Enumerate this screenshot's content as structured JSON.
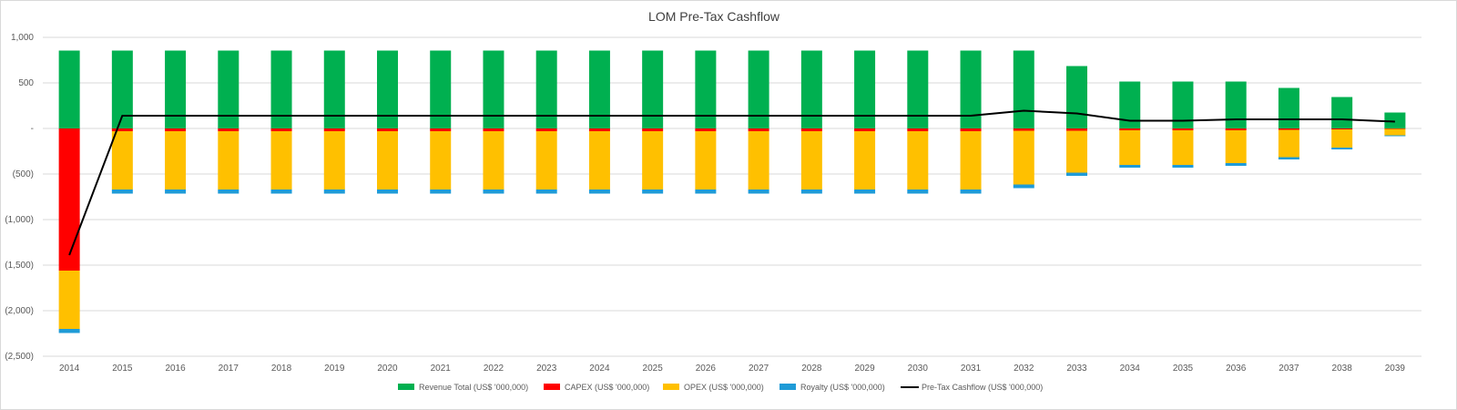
{
  "chart_data": {
    "type": "bar",
    "stacked": true,
    "title": "LOM Pre-Tax Cashflow",
    "xlabel": "",
    "ylabel": "",
    "ylim": [
      -2500,
      1000
    ],
    "y_ticks": [
      {
        "value": 1000,
        "label": "1,000"
      },
      {
        "value": 500,
        "label": "500"
      },
      {
        "value": 0,
        "label": "-"
      },
      {
        "value": -500,
        "label": "(500)"
      },
      {
        "value": -1000,
        "label": "(1,000)"
      },
      {
        "value": -1500,
        "label": "(1,500)"
      },
      {
        "value": -2000,
        "label": "(2,000)"
      },
      {
        "value": -2500,
        "label": "(2,500)"
      }
    ],
    "grid": true,
    "legend_position": "bottom",
    "categories": [
      "2014",
      "2015",
      "2016",
      "2017",
      "2018",
      "2019",
      "2020",
      "2021",
      "2022",
      "2023",
      "2024",
      "2025",
      "2026",
      "2027",
      "2028",
      "2029",
      "2030",
      "2031",
      "2032",
      "2033",
      "2034",
      "2035",
      "2036",
      "2037",
      "2038",
      "2039"
    ],
    "series": [
      {
        "name": "Revenue Total (US$ '000,000)",
        "kind": "bar",
        "color": "#00b050",
        "values": [
          855,
          855,
          855,
          855,
          855,
          855,
          855,
          855,
          855,
          855,
          855,
          855,
          855,
          855,
          855,
          855,
          855,
          855,
          855,
          685,
          515,
          515,
          515,
          445,
          345,
          175
        ]
      },
      {
        "name": "CAPEX (US$ '000,000)",
        "kind": "bar",
        "color": "#ff0000",
        "values": [
          -1560,
          -30,
          -30,
          -30,
          -30,
          -30,
          -30,
          -30,
          -30,
          -30,
          -30,
          -30,
          -30,
          -30,
          -30,
          -30,
          -30,
          -30,
          -25,
          -25,
          -20,
          -20,
          -20,
          -15,
          -10,
          -5
        ]
      },
      {
        "name": "OPEX (US$ '000,000)",
        "kind": "bar",
        "color": "#ffc000",
        "values": [
          -640,
          -640,
          -640,
          -640,
          -640,
          -640,
          -640,
          -640,
          -640,
          -640,
          -640,
          -640,
          -640,
          -640,
          -640,
          -640,
          -640,
          -640,
          -590,
          -460,
          -380,
          -380,
          -360,
          -300,
          -200,
          -70
        ]
      },
      {
        "name": "Royalty (US$ '000,000)",
        "kind": "bar",
        "color": "#1f9bd7",
        "values": [
          -45,
          -45,
          -45,
          -45,
          -45,
          -45,
          -45,
          -45,
          -45,
          -45,
          -45,
          -45,
          -45,
          -45,
          -45,
          -45,
          -45,
          -45,
          -40,
          -35,
          -30,
          -30,
          -30,
          -25,
          -20,
          -10
        ]
      },
      {
        "name": "Pre-Tax Cashflow (US$ '000,000)",
        "kind": "line",
        "color": "#000000",
        "values": [
          -1390,
          140,
          140,
          140,
          140,
          140,
          140,
          140,
          140,
          140,
          140,
          140,
          140,
          140,
          140,
          140,
          140,
          140,
          195,
          165,
          85,
          85,
          100,
          100,
          100,
          75
        ]
      }
    ]
  }
}
